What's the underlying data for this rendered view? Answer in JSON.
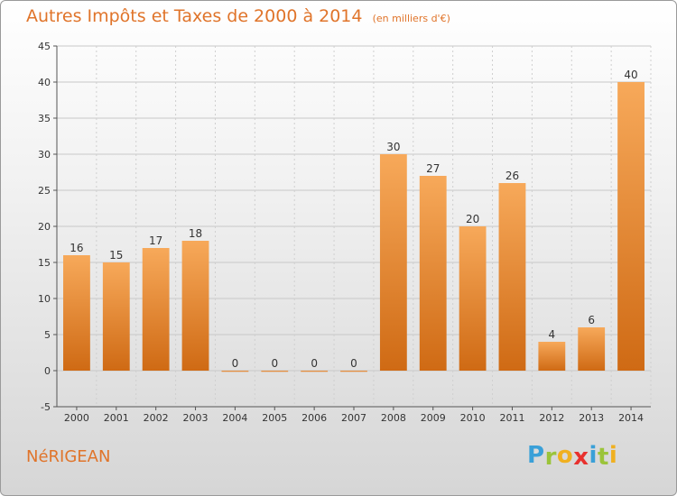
{
  "title": "Autres Impôts et Taxes de 2000 à 2014",
  "unit_note": "(en milliers d'€)",
  "commune": "NéRIGEAN",
  "logo": {
    "letters": [
      "P",
      "r",
      "o",
      "x",
      "i",
      "t",
      "i"
    ],
    "colors": [
      "#3aa0d8",
      "#9bc43a",
      "#f0b020",
      "#e8312e",
      "#3aa0d8",
      "#9bc43a",
      "#f0b020"
    ]
  },
  "colors": {
    "bar_light": "#f7a95a",
    "bar_dark": "#cf6a14",
    "title": "#e0742a"
  },
  "chart_data": {
    "type": "bar",
    "title": "Autres Impôts et Taxes de 2000 à 2014",
    "subtitle": "(en milliers d'€)",
    "xlabel": "",
    "ylabel": "",
    "categories": [
      "2000",
      "2001",
      "2002",
      "2003",
      "2004",
      "2005",
      "2006",
      "2007",
      "2008",
      "2009",
      "2010",
      "2011",
      "2012",
      "2013",
      "2014"
    ],
    "values": [
      16,
      15,
      17,
      18,
      0,
      0,
      0,
      0,
      30,
      27,
      20,
      26,
      4,
      6,
      40
    ],
    "data_labels": [
      "16",
      "15",
      "17",
      "18",
      "0",
      "0",
      "0",
      "0",
      "30",
      "27",
      "20",
      "26",
      "4",
      "6",
      "40"
    ],
    "ylim": [
      -5,
      45
    ],
    "yticks": [
      -5,
      0,
      5,
      10,
      15,
      20,
      25,
      30,
      35,
      40,
      45
    ],
    "grid": true,
    "legend": "none"
  }
}
